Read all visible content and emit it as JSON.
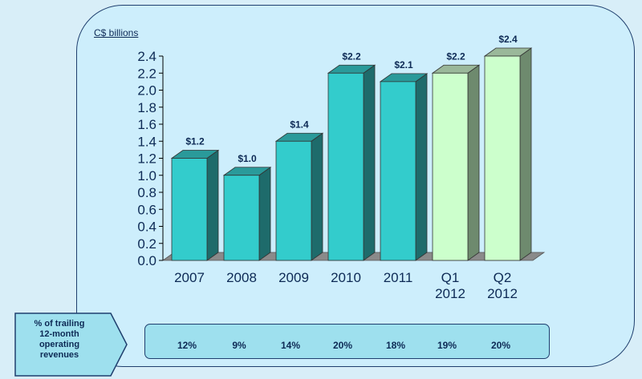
{
  "chart_data": {
    "type": "bar",
    "ylabel": "C$ billions",
    "categories": [
      [
        "2007"
      ],
      [
        "2008"
      ],
      [
        "2009"
      ],
      [
        "2010"
      ],
      [
        "2011"
      ],
      [
        "Q1",
        "2012"
      ],
      [
        "Q2",
        "2012"
      ]
    ],
    "values": [
      1.2,
      1.0,
      1.4,
      2.2,
      2.1,
      2.2,
      2.4
    ],
    "data_labels": [
      "$1.2",
      "$1.0",
      "$1.4",
      "$2.2",
      "$2.1",
      "$2.2",
      "$2.4"
    ],
    "yticks": [
      "0.0",
      "0.2",
      "0.4",
      "0.6",
      "0.8",
      "1.0",
      "1.2",
      "1.4",
      "1.6",
      "1.8",
      "2.0",
      "2.2",
      "2.4"
    ],
    "ylim": [
      0,
      2.4
    ],
    "colors": {
      "annual_front": "#33cccc",
      "annual_side": "#1e6b6b",
      "annual_top": "#2a9a9a",
      "quarterly_front": "#ccffcc",
      "quarterly_side": "#6e8a6e",
      "quarterly_top": "#9ab89a",
      "floor": "#8a8a8a"
    },
    "quarterly_from_index": 5
  },
  "revenue_row": {
    "label_lines": [
      "% of trailing",
      "12-month",
      "operating",
      "revenues"
    ],
    "values": [
      "12%",
      "9%",
      "14%",
      "20%",
      "18%",
      "19%",
      "20%"
    ]
  }
}
